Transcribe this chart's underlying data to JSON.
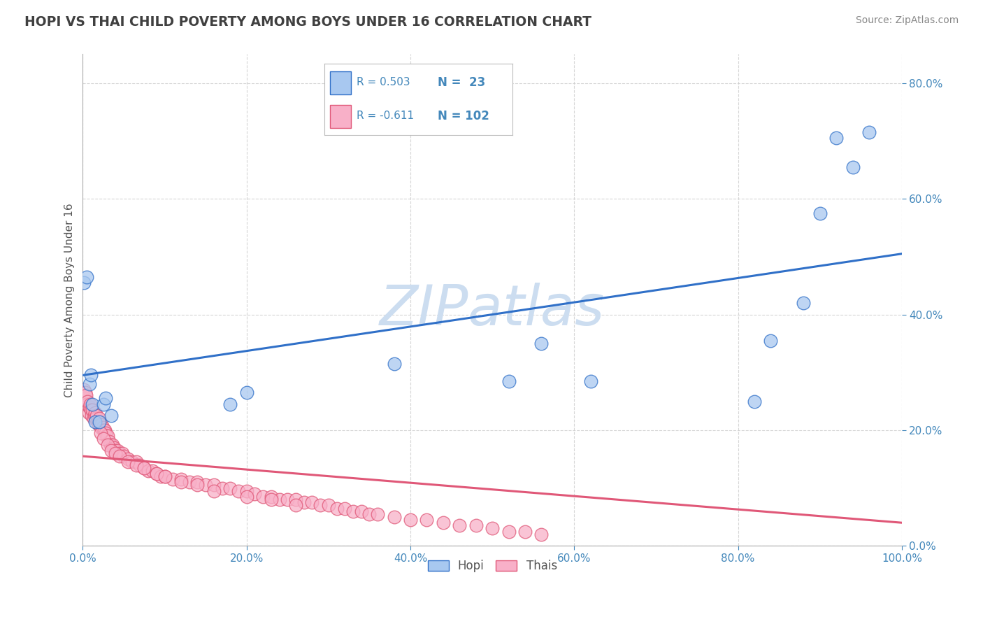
{
  "title": "HOPI VS THAI CHILD POVERTY AMONG BOYS UNDER 16 CORRELATION CHART",
  "source": "Source: ZipAtlas.com",
  "ylabel": "Child Poverty Among Boys Under 16",
  "hopi_R": 0.503,
  "hopi_N": 23,
  "thai_R": -0.611,
  "thai_N": 102,
  "hopi_color": "#a8c8f0",
  "thai_color": "#f8b0c8",
  "hopi_line_color": "#3070c8",
  "thai_line_color": "#e05878",
  "background_color": "#ffffff",
  "grid_color": "#cccccc",
  "title_color": "#404040",
  "watermark_color": "#ccddf0",
  "xlim": [
    0.0,
    1.0
  ],
  "ylim": [
    0.0,
    0.85
  ],
  "hopi_x": [
    0.001,
    0.005,
    0.008,
    0.01,
    0.012,
    0.015,
    0.02,
    0.025,
    0.028,
    0.035,
    0.18,
    0.2,
    0.38,
    0.52,
    0.56,
    0.62,
    0.82,
    0.84,
    0.88,
    0.9,
    0.92,
    0.94,
    0.96
  ],
  "hopi_y": [
    0.455,
    0.465,
    0.28,
    0.295,
    0.245,
    0.215,
    0.215,
    0.245,
    0.255,
    0.225,
    0.245,
    0.265,
    0.315,
    0.285,
    0.35,
    0.285,
    0.25,
    0.355,
    0.42,
    0.575,
    0.705,
    0.655,
    0.715
  ],
  "thai_x": [
    0.001,
    0.002,
    0.003,
    0.004,
    0.005,
    0.006,
    0.007,
    0.008,
    0.009,
    0.01,
    0.011,
    0.012,
    0.013,
    0.014,
    0.015,
    0.016,
    0.017,
    0.018,
    0.019,
    0.02,
    0.021,
    0.022,
    0.023,
    0.024,
    0.025,
    0.026,
    0.027,
    0.028,
    0.029,
    0.03,
    0.032,
    0.034,
    0.036,
    0.038,
    0.04,
    0.042,
    0.045,
    0.048,
    0.05,
    0.055,
    0.06,
    0.065,
    0.07,
    0.075,
    0.08,
    0.085,
    0.09,
    0.095,
    0.1,
    0.11,
    0.12,
    0.13,
    0.14,
    0.15,
    0.16,
    0.17,
    0.18,
    0.19,
    0.2,
    0.21,
    0.22,
    0.23,
    0.24,
    0.25,
    0.26,
    0.27,
    0.28,
    0.29,
    0.3,
    0.31,
    0.32,
    0.33,
    0.34,
    0.35,
    0.36,
    0.38,
    0.4,
    0.42,
    0.44,
    0.46,
    0.48,
    0.5,
    0.52,
    0.54,
    0.56,
    0.022,
    0.025,
    0.03,
    0.035,
    0.04,
    0.045,
    0.055,
    0.065,
    0.075,
    0.09,
    0.1,
    0.12,
    0.14,
    0.16,
    0.2,
    0.23,
    0.26
  ],
  "thai_y": [
    0.27,
    0.255,
    0.265,
    0.26,
    0.245,
    0.25,
    0.23,
    0.24,
    0.245,
    0.235,
    0.225,
    0.235,
    0.22,
    0.225,
    0.23,
    0.22,
    0.225,
    0.215,
    0.21,
    0.22,
    0.21,
    0.205,
    0.21,
    0.205,
    0.2,
    0.2,
    0.2,
    0.195,
    0.19,
    0.19,
    0.18,
    0.175,
    0.175,
    0.17,
    0.165,
    0.165,
    0.16,
    0.16,
    0.155,
    0.15,
    0.145,
    0.145,
    0.14,
    0.135,
    0.13,
    0.13,
    0.125,
    0.12,
    0.12,
    0.115,
    0.115,
    0.11,
    0.11,
    0.105,
    0.105,
    0.1,
    0.1,
    0.095,
    0.095,
    0.09,
    0.085,
    0.085,
    0.08,
    0.08,
    0.08,
    0.075,
    0.075,
    0.07,
    0.07,
    0.065,
    0.065,
    0.06,
    0.06,
    0.055,
    0.055,
    0.05,
    0.045,
    0.045,
    0.04,
    0.035,
    0.035,
    0.03,
    0.025,
    0.025,
    0.02,
    0.195,
    0.185,
    0.175,
    0.165,
    0.16,
    0.155,
    0.145,
    0.14,
    0.135,
    0.125,
    0.12,
    0.11,
    0.105,
    0.095,
    0.085,
    0.08,
    0.07
  ],
  "hopi_line_y0": 0.295,
  "hopi_line_y1": 0.505,
  "thai_line_y0": 0.155,
  "thai_line_y1": 0.04
}
